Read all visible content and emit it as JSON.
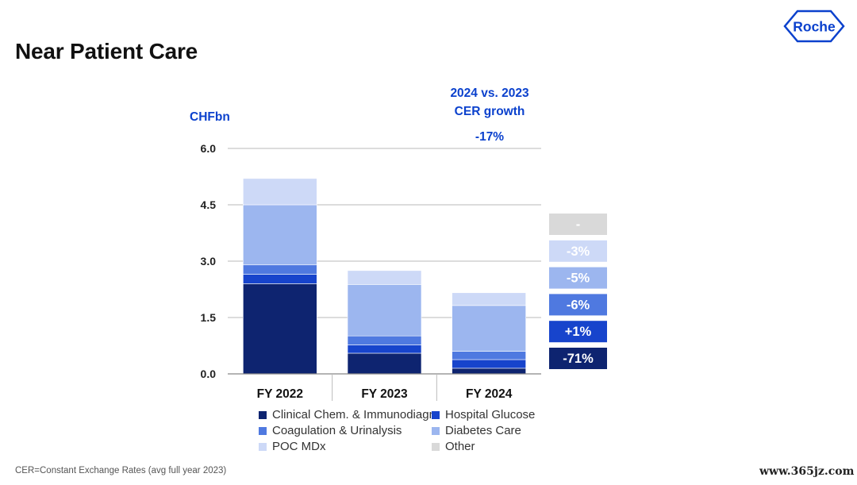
{
  "page": {
    "title": "Near Patient Care",
    "footnote": "CER=Constant Exchange Rates (avg full year 2023)",
    "watermark": "www.365jz.com"
  },
  "logo": {
    "text": "Roche",
    "color": "#0b41cd"
  },
  "growth_header": {
    "line1": "2024 vs. 2023",
    "line2": "CER growth",
    "total": "-17%",
    "color": "#0b41cd"
  },
  "chart_data": {
    "type": "bar",
    "stacked": true,
    "unit_label": "CHFbn",
    "categories": [
      "FY 2022",
      "FY 2023",
      "FY 2024"
    ],
    "ylim": [
      0,
      6.0
    ],
    "yticks": [
      "0.0",
      "1.5",
      "3.0",
      "4.5",
      "6.0"
    ],
    "ytick_values": [
      0,
      1.5,
      3.0,
      4.5,
      6.0
    ],
    "grid": true,
    "series": [
      {
        "name": "Clinical Chem. & Immunodiagn.",
        "color": "#0e2470",
        "values": [
          2.4,
          0.55,
          0.15
        ],
        "growth": "-71%",
        "growth_bg": "#0e2470",
        "growth_fg": "#ffffff"
      },
      {
        "name": "Hospital Glucose",
        "color": "#1744cc",
        "values": [
          0.25,
          0.22,
          0.23
        ],
        "growth": "+1%",
        "growth_bg": "#1744cc",
        "growth_fg": "#ffffff"
      },
      {
        "name": "Coagulation & Urinalysis",
        "color": "#4f79e0",
        "values": [
          0.25,
          0.24,
          0.22
        ],
        "growth": "-6%",
        "growth_bg": "#4f79e0",
        "growth_fg": "#ffffff"
      },
      {
        "name": "Diabetes Care",
        "color": "#9cb6ef",
        "values": [
          1.6,
          1.37,
          1.22
        ],
        "growth": "-5%",
        "growth_bg": "#9cb6ef",
        "growth_fg": "#ffffff"
      },
      {
        "name": "POC MDx",
        "color": "#cdd9f7",
        "values": [
          0.7,
          0.37,
          0.34
        ],
        "growth": "-3%",
        "growth_bg": "#cdd9f7",
        "growth_fg": "#ffffff"
      },
      {
        "name": "Other",
        "color": "#d9d9d9",
        "values": [
          0,
          0,
          0
        ],
        "growth": "-",
        "growth_bg": "#d9d9d9",
        "growth_fg": "#ffffff"
      }
    ],
    "legend_order": [
      0,
      1,
      2,
      3,
      4,
      5
    ]
  }
}
